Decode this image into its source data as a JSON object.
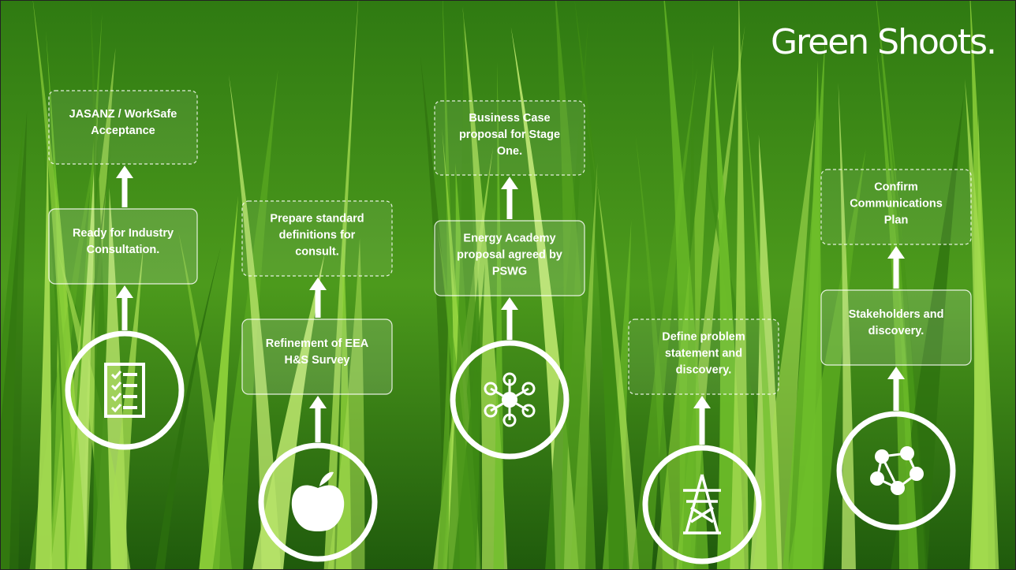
{
  "title": "Green Shoots.",
  "columns": [
    {
      "boxes": [
        {
          "lines": [
            "Ready for Industry",
            "Consultation."
          ]
        },
        {
          "lines": [
            "JASANZ / WorkSafe",
            "Acceptance"
          ]
        }
      ]
    },
    {
      "boxes": [
        {
          "lines": [
            "Refinement of EEA",
            "H&S Survey"
          ]
        },
        {
          "lines": [
            "Prepare standard",
            "definitions  for",
            "consult."
          ]
        }
      ]
    },
    {
      "boxes": [
        {
          "lines": [
            "Energy Academy",
            "proposal agreed by",
            "PSWG"
          ]
        },
        {
          "lines": [
            "Business Case",
            "proposal for Stage",
            "One."
          ]
        }
      ]
    },
    {
      "boxes": [
        {
          "lines": [
            "Define problem",
            "statement and",
            "discovery."
          ]
        }
      ]
    },
    {
      "boxes": [
        {
          "lines": [
            "Stakeholders and",
            "discovery."
          ]
        },
        {
          "lines": [
            "Confirm",
            "Communications",
            "Plan"
          ]
        }
      ]
    }
  ]
}
